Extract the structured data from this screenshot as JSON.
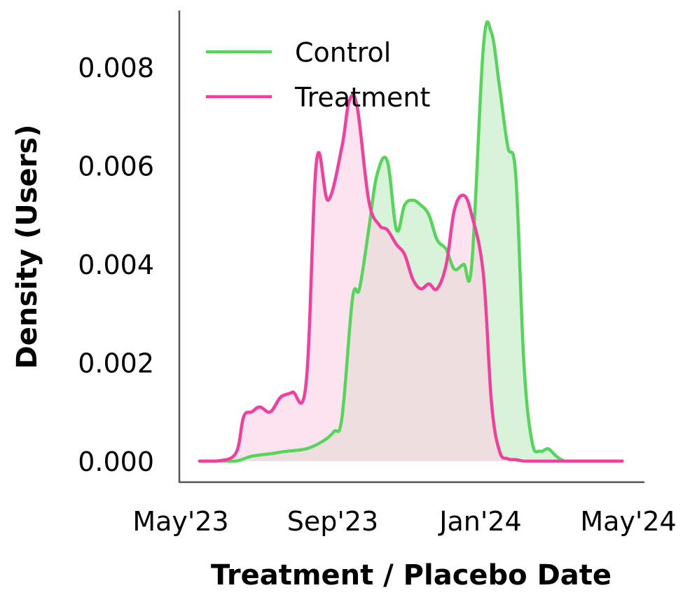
{
  "chart_data": {
    "type": "area",
    "xlabel": "Treatment / Placebo Date",
    "ylabel": "Density (Users)",
    "x_ticks": [
      "May'23",
      "Sep'23",
      "Jan'24",
      "May'24"
    ],
    "y_ticks": [
      "0.000",
      "0.002",
      "0.004",
      "0.006",
      "0.008"
    ],
    "ylim": [
      -0.0004,
      0.0092
    ],
    "legend_position": "top-left",
    "grid": false,
    "series": [
      {
        "name": "Control",
        "color": "#55d65a",
        "fill": "#d9f3da",
        "x": [
          "2023-05-01",
          "2023-05-15",
          "2023-06-01",
          "2023-06-15",
          "2023-07-01",
          "2023-07-15",
          "2023-08-01",
          "2023-08-15",
          "2023-08-25",
          "2023-09-01",
          "2023-09-10",
          "2023-09-16",
          "2023-09-24",
          "2023-10-01",
          "2023-10-10",
          "2023-10-18",
          "2023-10-25",
          "2023-11-01",
          "2023-11-08",
          "2023-11-15",
          "2023-11-22",
          "2023-11-30",
          "2023-12-07",
          "2023-12-15",
          "2023-12-22",
          "2024-01-01",
          "2024-01-08",
          "2024-01-15",
          "2024-01-22",
          "2024-01-29",
          "2024-02-05",
          "2024-02-12",
          "2024-02-19",
          "2024-02-26",
          "2024-03-04",
          "2024-03-11",
          "2024-03-18",
          "2024-03-25",
          "2024-04-01",
          "2024-04-08",
          "2024-04-15",
          "2024-04-22",
          "2024-04-30"
        ],
        "y": [
          0.0,
          0.0,
          0.0,
          0.0001,
          0.00015,
          0.0002,
          0.00025,
          0.0004,
          0.0006,
          0.0009,
          0.0033,
          0.0035,
          0.0047,
          0.0058,
          0.0061,
          0.0047,
          0.0052,
          0.0053,
          0.0052,
          0.005,
          0.0045,
          0.0043,
          0.0039,
          0.004,
          0.004,
          0.0084,
          0.0087,
          0.0076,
          0.0064,
          0.0058,
          0.002,
          0.0004,
          0.0002,
          0.00025,
          0.0001,
          0.0,
          0.0,
          0.0,
          0.0,
          0.0,
          0.0,
          0.0,
          0.0
        ]
      },
      {
        "name": "Treatment",
        "color": "#f23f9e",
        "fill": "#fbd0e5",
        "x": [
          "2023-05-01",
          "2023-05-15",
          "2023-06-01",
          "2023-06-08",
          "2023-06-15",
          "2023-06-22",
          "2023-07-01",
          "2023-07-10",
          "2023-07-20",
          "2023-08-01",
          "2023-08-10",
          "2023-08-20",
          "2023-09-01",
          "2023-09-07",
          "2023-09-14",
          "2023-09-24",
          "2023-10-03",
          "2023-10-10",
          "2023-10-18",
          "2023-10-25",
          "2023-11-01",
          "2023-11-08",
          "2023-11-15",
          "2023-11-22",
          "2023-11-30",
          "2023-12-07",
          "2023-12-15",
          "2023-12-22",
          "2024-01-01",
          "2024-01-08",
          "2024-01-15",
          "2024-01-22",
          "2024-01-29",
          "2024-02-05",
          "2024-02-12",
          "2024-02-19",
          "2024-02-26",
          "2024-03-04",
          "2024-03-11",
          "2024-03-18",
          "2024-03-25",
          "2024-04-01",
          "2024-04-15",
          "2024-04-30"
        ],
        "y": [
          0.0,
          0.0,
          0.00015,
          0.0009,
          0.001,
          0.0011,
          0.001,
          0.0013,
          0.0014,
          0.0016,
          0.0061,
          0.0053,
          0.0064,
          0.0073,
          0.0072,
          0.0053,
          0.0048,
          0.0047,
          0.0044,
          0.0042,
          0.0037,
          0.0035,
          0.0036,
          0.0035,
          0.004,
          0.0051,
          0.0054,
          0.005,
          0.0038,
          0.0012,
          0.0002,
          5e-05,
          3e-05,
          0.0,
          0.0,
          0.0,
          0.0,
          0.0,
          0.0,
          0.0,
          0.0,
          0.0,
          0.0,
          0.0
        ]
      }
    ]
  }
}
